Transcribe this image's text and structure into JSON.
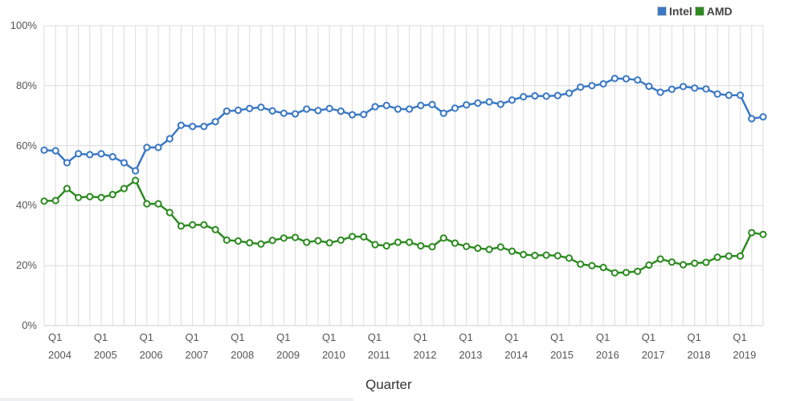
{
  "legend": {
    "items": [
      {
        "label": "Intel",
        "color": "#3a78c3"
      },
      {
        "label": "AMD",
        "color": "#2e8b22"
      }
    ]
  },
  "axes": {
    "y_ticks": [
      "100%",
      "80%",
      "60%",
      "40%",
      "20%",
      "0%"
    ],
    "x_tick_quarter": "Q1",
    "x_years": [
      "2004",
      "2005",
      "2006",
      "2007",
      "2008",
      "2009",
      "2010",
      "2011",
      "2012",
      "2013",
      "2014",
      "2015",
      "2016",
      "2017",
      "2018",
      "2019"
    ],
    "x_title": "Quarter"
  },
  "chart_data": {
    "type": "line",
    "title": "",
    "xlabel": "Quarter",
    "ylabel": "",
    "ylim": [
      0,
      100
    ],
    "y_unit": "%",
    "grid": {
      "horizontal": true,
      "vertical": true
    },
    "legend_position": "top-right",
    "x": [
      "Q1 2004",
      "Q2 2004",
      "Q3 2004",
      "Q4 2004",
      "Q1 2005",
      "Q2 2005",
      "Q3 2005",
      "Q4 2005",
      "Q1 2006",
      "Q2 2006",
      "Q3 2006",
      "Q4 2006",
      "Q1 2007",
      "Q2 2007",
      "Q3 2007",
      "Q4 2007",
      "Q1 2008",
      "Q2 2008",
      "Q3 2008",
      "Q4 2008",
      "Q1 2009",
      "Q2 2009",
      "Q3 2009",
      "Q4 2009",
      "Q1 2010",
      "Q2 2010",
      "Q3 2010",
      "Q4 2010",
      "Q1 2011",
      "Q2 2011",
      "Q3 2011",
      "Q4 2011",
      "Q1 2012",
      "Q2 2012",
      "Q3 2012",
      "Q4 2012",
      "Q1 2013",
      "Q2 2013",
      "Q3 2013",
      "Q4 2013",
      "Q1 2014",
      "Q2 2014",
      "Q3 2014",
      "Q4 2014",
      "Q1 2015",
      "Q2 2015",
      "Q3 2015",
      "Q4 2015",
      "Q1 2016",
      "Q2 2016",
      "Q3 2016",
      "Q4 2016",
      "Q1 2017",
      "Q2 2017",
      "Q3 2017",
      "Q4 2017",
      "Q1 2018",
      "Q2 2018",
      "Q3 2018",
      "Q4 2018",
      "Q1 2019",
      "Q2 2019",
      "Q3 2019",
      "Q4 2019"
    ],
    "series": [
      {
        "name": "Intel",
        "color": "#3a78c3",
        "values": [
          58.5,
          58.3,
          54.3,
          57.3,
          57.0,
          57.3,
          56.3,
          54.3,
          51.6,
          59.4,
          59.4,
          62.3,
          66.8,
          66.4,
          66.4,
          68.0,
          71.5,
          71.8,
          72.4,
          72.8,
          71.6,
          70.8,
          70.6,
          72.2,
          71.7,
          72.4,
          71.5,
          70.3,
          70.4,
          73.0,
          73.4,
          72.2,
          72.2,
          73.4,
          73.7,
          70.8,
          72.5,
          73.6,
          74.2,
          74.6,
          73.8,
          75.2,
          76.3,
          76.6,
          76.5,
          76.7,
          77.5,
          79.5,
          80.0,
          80.6,
          82.4,
          82.3,
          81.9,
          79.8,
          77.8,
          78.8,
          79.7,
          79.2,
          78.9,
          77.2,
          76.8,
          76.8,
          69.0,
          69.6
        ]
      },
      {
        "name": "AMD",
        "color": "#2e8b22",
        "values": [
          41.5,
          41.7,
          45.7,
          42.7,
          43.0,
          42.7,
          43.7,
          45.7,
          48.4,
          40.6,
          40.6,
          37.7,
          33.2,
          33.6,
          33.6,
          32.0,
          28.5,
          28.2,
          27.6,
          27.2,
          28.4,
          29.2,
          29.4,
          27.8,
          28.3,
          27.6,
          28.5,
          29.7,
          29.6,
          27.0,
          26.6,
          27.8,
          27.8,
          26.6,
          26.3,
          29.2,
          27.5,
          26.4,
          25.8,
          25.4,
          26.2,
          24.8,
          23.7,
          23.4,
          23.5,
          23.3,
          22.5,
          20.5,
          20.0,
          19.4,
          17.6,
          17.7,
          18.1,
          20.2,
          22.2,
          21.2,
          20.3,
          20.8,
          21.1,
          22.8,
          23.2,
          23.2,
          31.0,
          30.4
        ]
      }
    ]
  }
}
